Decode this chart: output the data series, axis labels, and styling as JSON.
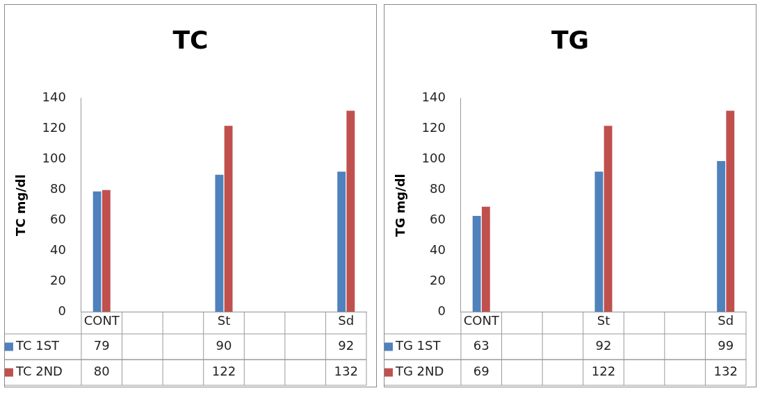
{
  "chart_data": [
    {
      "type": "bar",
      "title": "TC",
      "ylabel": "TC mg/dl",
      "categories": [
        "CONT",
        null,
        null,
        "St",
        null,
        null,
        "Sd"
      ],
      "ylim": [
        0,
        140
      ],
      "yticks": [
        0,
        20,
        40,
        60,
        80,
        100,
        120,
        140
      ],
      "legend": "bottom",
      "data_labels": true,
      "series": [
        {
          "name": "TC 1ST",
          "color": "#4f81bd",
          "values": [
            79,
            null,
            null,
            90,
            null,
            null,
            92
          ]
        },
        {
          "name": "TC 2ND",
          "color": "#c0504d",
          "values": [
            80,
            null,
            null,
            122,
            null,
            null,
            132
          ]
        }
      ]
    },
    {
      "type": "bar",
      "title": "TG",
      "ylabel": "TG mg/dl",
      "categories": [
        "CONT",
        null,
        null,
        "St",
        null,
        null,
        "Sd"
      ],
      "ylim": [
        0,
        140
      ],
      "yticks": [
        0,
        20,
        40,
        60,
        80,
        100,
        120,
        140
      ],
      "legend": "bottom",
      "data_labels": true,
      "series": [
        {
          "name": "TG 1ST",
          "color": "#4f81bd",
          "values": [
            63,
            null,
            null,
            92,
            null,
            null,
            99
          ]
        },
        {
          "name": "TG 2ND",
          "color": "#c0504d",
          "values": [
            69,
            null,
            null,
            122,
            null,
            null,
            132
          ]
        }
      ]
    }
  ]
}
